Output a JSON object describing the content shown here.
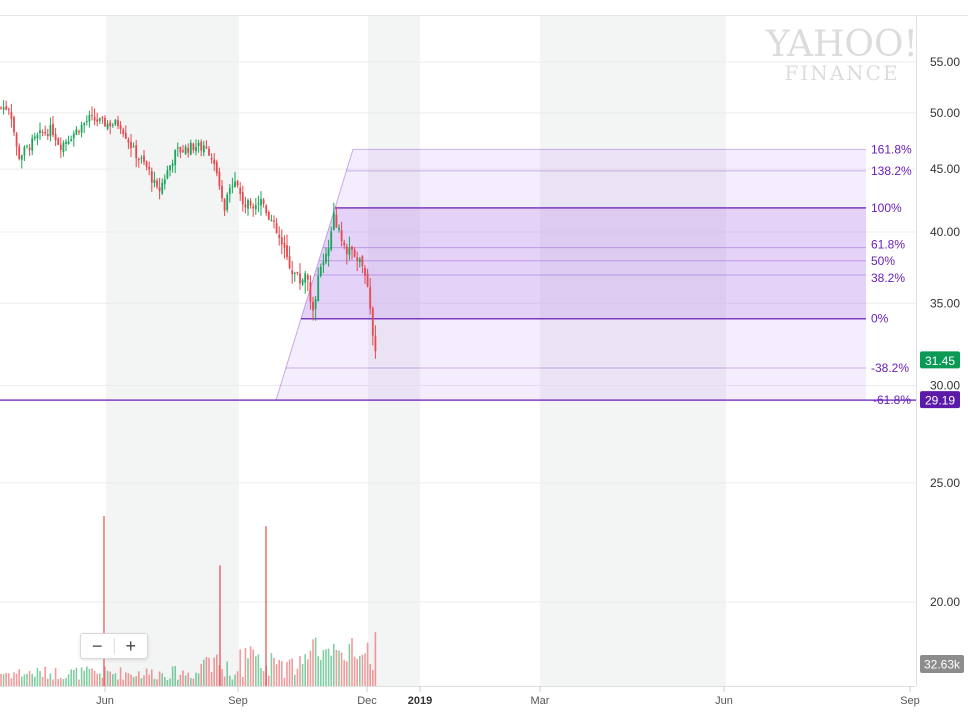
{
  "watermark": {
    "line1": "YAHOO!",
    "line2": "FINANCE"
  },
  "zoom": {
    "minus_label": "−",
    "plus_label": "+"
  },
  "colors": {
    "up": "#19a55a",
    "down": "#e5484d",
    "fib_line": "#6a1fb8",
    "fib_fill": "#b98cf2",
    "last_price_badge": "#0a9a55",
    "fib_badge": "#5b1aa8",
    "volume_badge": "#8c8c8c",
    "shade": "#f3f4f4"
  },
  "chart_data": {
    "type": "candlestick",
    "y_scale": "log",
    "ylim": [
      17.5,
      59.5
    ],
    "y_ticks": [
      "55.00",
      "50.00",
      "45.00",
      "40.00",
      "35.00",
      "30.00",
      "25.00",
      "20.00"
    ],
    "x_ticks": [
      {
        "label": "Jun",
        "bold": false
      },
      {
        "label": "Sep",
        "bold": false
      },
      {
        "label": "Dec",
        "bold": false
      },
      {
        "label": "2019",
        "bold": true
      },
      {
        "label": "Mar",
        "bold": false
      },
      {
        "label": "Jun",
        "bold": false
      },
      {
        "label": "Sep",
        "bold": false
      }
    ],
    "grid": true,
    "last_price": "31.45",
    "volume_label": "32.63k",
    "fibonacci": {
      "low": 34.0,
      "high": 41.85,
      "levels": [
        {
          "label": "161.8%",
          "value": 46.7
        },
        {
          "label": "138.2%",
          "value": 44.85
        },
        {
          "label": "100%",
          "value": 41.85
        },
        {
          "label": "61.8%",
          "value": 38.85
        },
        {
          "label": "50%",
          "value": 37.9
        },
        {
          "label": "38.2%",
          "value": 36.9
        },
        {
          "label": "0%",
          "value": 34.0
        },
        {
          "label": "-38.2%",
          "value": 31.0
        },
        {
          "label": "-61.8%",
          "value": 29.19
        }
      ],
      "highlight_level": {
        "label": "29.19",
        "value": 29.19
      }
    },
    "price_path": [
      [
        0,
        50.5
      ],
      [
        10,
        50.5
      ],
      [
        18,
        46.0
      ],
      [
        24,
        46.5
      ],
      [
        40,
        48.0
      ],
      [
        52,
        48.5
      ],
      [
        60,
        47.0
      ],
      [
        72,
        48.0
      ],
      [
        90,
        49.5
      ],
      [
        105,
        49.0
      ],
      [
        120,
        49.0
      ],
      [
        134,
        46.5
      ],
      [
        148,
        45.0
      ],
      [
        158,
        43.0
      ],
      [
        176,
        46.5
      ],
      [
        196,
        47.0
      ],
      [
        210,
        46.5
      ],
      [
        218,
        44.0
      ],
      [
        224,
        41.5
      ],
      [
        234,
        44.5
      ],
      [
        244,
        42.0
      ],
      [
        262,
        42.5
      ],
      [
        276,
        40.0
      ],
      [
        290,
        37.5
      ],
      [
        300,
        36.5
      ],
      [
        306,
        37.0
      ],
      [
        312,
        34.5
      ],
      [
        320,
        37.0
      ],
      [
        328,
        38.5
      ],
      [
        334,
        41.2
      ],
      [
        344,
        39.0
      ],
      [
        352,
        38.5
      ],
      [
        360,
        38.0
      ],
      [
        366,
        36.5
      ],
      [
        370,
        34.5
      ],
      [
        372,
        33.0
      ],
      [
        374,
        32.0
      ],
      [
        377,
        31.3
      ]
    ],
    "volume_spikes": [
      {
        "x": 104,
        "v": 100
      },
      {
        "x": 220,
        "v": 71
      },
      {
        "x": 266,
        "v": 94
      }
    ]
  }
}
